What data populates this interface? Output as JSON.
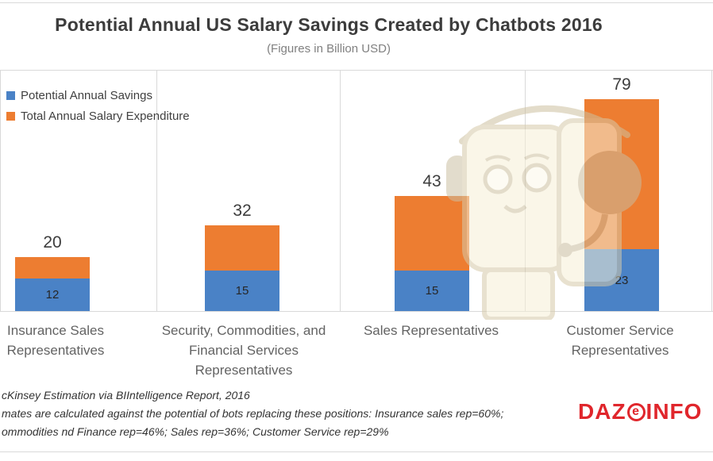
{
  "title": "Potential Annual US Salary Savings Created by Chatbots 2016",
  "subtitle": "(Figures in Billion USD)",
  "chart_data": {
    "type": "bar",
    "categories": [
      "Insurance Sales Representatives",
      "Security, Commodities, and Financial Services Representatives",
      "Sales Representatives",
      "Customer Service Representatives"
    ],
    "series": [
      {
        "name": "Potential Annual Savings",
        "color": "#4A82C6",
        "values": [
          12,
          15,
          15,
          23
        ]
      },
      {
        "name": "Total Annual Salary Expenditure",
        "color": "#ED7D31",
        "values": [
          20,
          32,
          43,
          79
        ]
      }
    ],
    "ylim": [
      0,
      90
    ],
    "grid": "vertical category separators, top and baseline rules",
    "legend_position": "top-left",
    "value_labels": "totals above bars, savings inside blue segment"
  },
  "footnotes": [
    "cKinsey Estimation via BIIntelligence Report, 2016",
    "mates are calculated against the potential of bots replacing these positions: Insurance sales rep=60%;",
    "ommodities nd Finance rep=46%; Sales rep=36%; Customer Service rep=29%"
  ],
  "logo": {
    "part1": "DAZ",
    "part2": "e",
    "part3": "INFO",
    "color": "#E0262C"
  },
  "watermark": "chatbot-robot-head"
}
